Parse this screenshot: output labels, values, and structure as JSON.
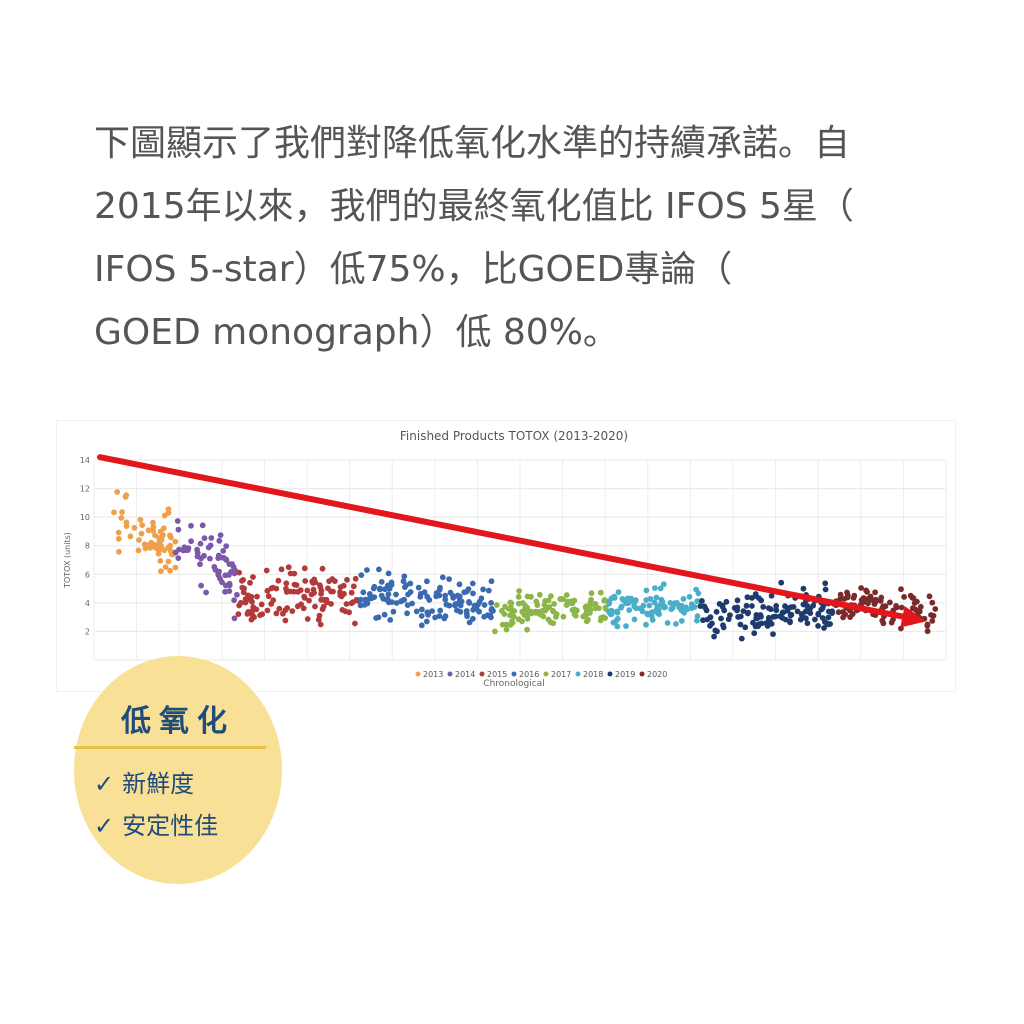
{
  "intro": {
    "lines": [
      "下圖顯示了我們對降低氧化水準的持續承諾。自",
      "2015年以來，我們的最終氧化值比 IFOS 5星（",
      "IFOS 5-star）低75%，比GOED專論（",
      "GOED monograph）低 80%。"
    ]
  },
  "chart_data": {
    "type": "scatter",
    "title": "Finished Products TOTOX (2013-2020)",
    "xlabel": "Chronological",
    "ylabel": "TOTOX (units)",
    "ylim": [
      0,
      14
    ],
    "yticks": [
      "14",
      "12",
      "10",
      "8",
      "6",
      "4",
      "2",
      ""
    ],
    "grid": true,
    "legend_position": "bottom",
    "series": [
      {
        "name": "2013",
        "color": "#f0a04b",
        "mean_start": 10.5,
        "mean_end": 7.5,
        "spread": 1.8,
        "count": 60
      },
      {
        "name": "2014",
        "color": "#7b59a8",
        "mean_start": 9.5,
        "mean_end": 5.0,
        "spread": 1.8,
        "count": 60
      },
      {
        "name": "2015",
        "color": "#b23a3a",
        "mean_start": 4.5,
        "mean_end": 4.5,
        "spread": 1.4,
        "count": 120
      },
      {
        "name": "2016",
        "color": "#3a6bb0",
        "mean_start": 4.5,
        "mean_end": 3.8,
        "spread": 1.3,
        "count": 130
      },
      {
        "name": "2017",
        "color": "#8db64a",
        "mean_start": 3.2,
        "mean_end": 3.6,
        "spread": 1.1,
        "count": 110
      },
      {
        "name": "2018",
        "color": "#4aaec8",
        "mean_start": 3.6,
        "mean_end": 4.0,
        "spread": 1.1,
        "count": 90
      },
      {
        "name": "2019",
        "color": "#1f3b6e",
        "mean_start": 3.0,
        "mean_end": 3.6,
        "spread": 1.3,
        "count": 130
      },
      {
        "name": "2020",
        "color": "#7a2a2a",
        "mean_start": 4.0,
        "mean_end": 3.4,
        "spread": 1.0,
        "count": 100
      }
    ],
    "trend_arrow": {
      "color": "#e3161b",
      "y_start": 14.2,
      "y_end": 2.7
    }
  },
  "badge": {
    "title": "低氧化",
    "tick": "✓",
    "items": [
      "新鮮度",
      "安定性佳"
    ]
  }
}
